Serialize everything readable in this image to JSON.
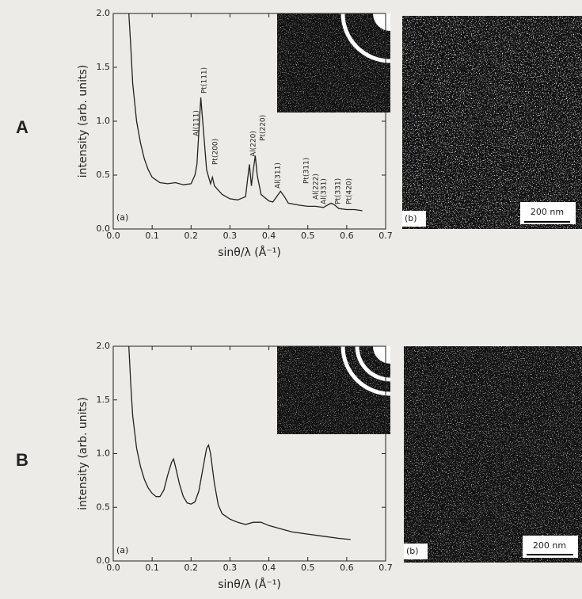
{
  "figure": {
    "panels": [
      {
        "letter": "A",
        "plot_label": "(a)",
        "image_label": "(b)",
        "scale_bar": "200 nm"
      },
      {
        "letter": "B",
        "plot_label": "(a)",
        "image_label": "(b)",
        "scale_bar": "200 nm"
      }
    ]
  },
  "chart_data": [
    {
      "type": "line",
      "x_label": "sinθ/λ (Å⁻¹)",
      "y_label": "intensity (arb. units)",
      "color": "#222222",
      "xlim": [
        0,
        0.7
      ],
      "ylim": [
        0,
        2.0
      ],
      "xticks": [
        {
          "value": 0,
          "label": "0.0"
        },
        0.1,
        0.2,
        0.3,
        0.4,
        0.5,
        0.6,
        0.7
      ],
      "yticks": [
        {
          "value": 0,
          "label": "0.0"
        },
        0.5,
        {
          "value": 1,
          "label": "1.0"
        },
        1.5,
        {
          "value": 2,
          "label": "2.0"
        }
      ],
      "annotations": [
        "Al(111)",
        "Pt(111)",
        "Pt(200)",
        "Al(220)",
        "Pt(220)",
        "Al(311)",
        "Pt(311)",
        "Al(222)",
        "Al(331)",
        "Pt(331)",
        "Pt(420)"
      ],
      "x": [
        0.04,
        0.045,
        0.05,
        0.06,
        0.07,
        0.08,
        0.09,
        0.1,
        0.12,
        0.14,
        0.16,
        0.18,
        0.2,
        0.21,
        0.215,
        0.22,
        0.225,
        0.23,
        0.24,
        0.25,
        0.255,
        0.26,
        0.28,
        0.3,
        0.32,
        0.34,
        0.345,
        0.35,
        0.355,
        0.36,
        0.365,
        0.37,
        0.38,
        0.4,
        0.41,
        0.42,
        0.43,
        0.44,
        0.45,
        0.48,
        0.5,
        0.52,
        0.54,
        0.55,
        0.56,
        0.57,
        0.58,
        0.6,
        0.62,
        0.64
      ],
      "values": [
        2.0,
        1.7,
        1.35,
        1.0,
        0.8,
        0.65,
        0.55,
        0.48,
        0.43,
        0.42,
        0.43,
        0.41,
        0.42,
        0.5,
        0.6,
        0.9,
        1.22,
        1.0,
        0.55,
        0.42,
        0.48,
        0.4,
        0.32,
        0.28,
        0.27,
        0.3,
        0.45,
        0.6,
        0.4,
        0.55,
        0.68,
        0.5,
        0.32,
        0.26,
        0.25,
        0.3,
        0.35,
        0.3,
        0.24,
        0.22,
        0.21,
        0.21,
        0.2,
        0.22,
        0.24,
        0.22,
        0.19,
        0.18,
        0.18,
        0.17
      ]
    },
    {
      "type": "line",
      "x_label": "sinθ/λ (Å⁻¹)",
      "y_label": "intensity (arb. units)",
      "color": "#222222",
      "xlim": [
        0,
        0.7
      ],
      "ylim": [
        0,
        2.0
      ],
      "xticks": [
        {
          "value": 0,
          "label": "0.0"
        },
        0.1,
        0.2,
        0.3,
        0.4,
        0.5,
        0.6,
        0.7
      ],
      "yticks": [
        {
          "value": 0,
          "label": "0.0"
        },
        0.5,
        {
          "value": 1,
          "label": "1.0"
        },
        1.5,
        {
          "value": 2,
          "label": "2.0"
        }
      ],
      "x": [
        0.04,
        0.045,
        0.05,
        0.06,
        0.07,
        0.08,
        0.09,
        0.1,
        0.11,
        0.12,
        0.13,
        0.14,
        0.15,
        0.155,
        0.16,
        0.17,
        0.18,
        0.19,
        0.2,
        0.21,
        0.22,
        0.23,
        0.24,
        0.245,
        0.25,
        0.26,
        0.27,
        0.28,
        0.3,
        0.32,
        0.34,
        0.36,
        0.38,
        0.4,
        0.43,
        0.46,
        0.5,
        0.54,
        0.58,
        0.61
      ],
      "values": [
        2.0,
        1.65,
        1.35,
        1.05,
        0.88,
        0.76,
        0.68,
        0.63,
        0.6,
        0.6,
        0.66,
        0.8,
        0.92,
        0.95,
        0.88,
        0.72,
        0.6,
        0.54,
        0.53,
        0.55,
        0.65,
        0.85,
        1.05,
        1.08,
        1.0,
        0.72,
        0.52,
        0.44,
        0.39,
        0.36,
        0.34,
        0.36,
        0.36,
        0.33,
        0.3,
        0.27,
        0.25,
        0.23,
        0.21,
        0.2
      ]
    }
  ]
}
